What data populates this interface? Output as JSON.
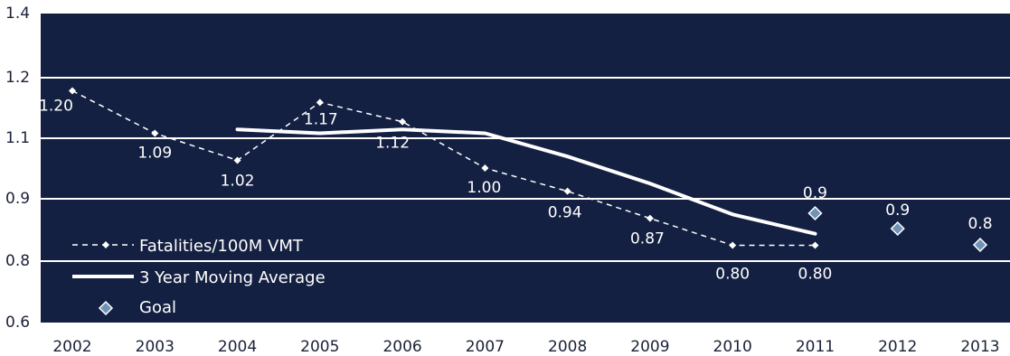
{
  "chart_data": {
    "type": "line",
    "title": "",
    "xlabel": "",
    "ylabel": "",
    "categories": [
      "2002",
      "2003",
      "2004",
      "2005",
      "2006",
      "2007",
      "2008",
      "2009",
      "2010",
      "2011",
      "2012",
      "2013"
    ],
    "y_ticks": [
      "1.4",
      "1.2",
      "1.1",
      "0.9",
      "0.8",
      "0.6"
    ],
    "ylim": [
      0.6,
      1.4
    ],
    "grid": true,
    "legend": {
      "placement": "bottom-left",
      "entries": [
        "Fatalities/100M VMT",
        "3 Year Moving Average",
        "Goal"
      ]
    },
    "series": [
      {
        "name": "Fatalities/100M VMT",
        "values": [
          1.2,
          1.09,
          1.02,
          1.17,
          1.12,
          1.0,
          0.94,
          0.87,
          0.8,
          0.8,
          null,
          null
        ],
        "labels": [
          "1.20",
          "1.09",
          "1.02",
          "1.17",
          "1.12",
          "1.00",
          "0.94",
          "0.87",
          "0.80",
          "0.80",
          "",
          ""
        ]
      },
      {
        "name": "3 Year Moving Average",
        "values": [
          null,
          null,
          1.1,
          1.09,
          1.1,
          1.09,
          1.03,
          0.96,
          0.88,
          0.83,
          null,
          null
        ]
      },
      {
        "name": "Goal",
        "values": [
          null,
          null,
          null,
          null,
          null,
          null,
          null,
          null,
          null,
          0.9,
          0.9,
          0.8
        ],
        "labels": [
          "",
          "",
          "",
          "",
          "",
          "",
          "",
          "",
          "",
          "0.9",
          "0.9",
          "0.8"
        ]
      }
    ],
    "colors": {
      "background": "#142042",
      "grid": "#ffffff",
      "axis_text": "#1b2238",
      "series_fatalities": "#ffffff",
      "series_average": "#ffffff",
      "goal_fill": "#6f93b6",
      "goal_stroke": "#ffffff"
    }
  }
}
